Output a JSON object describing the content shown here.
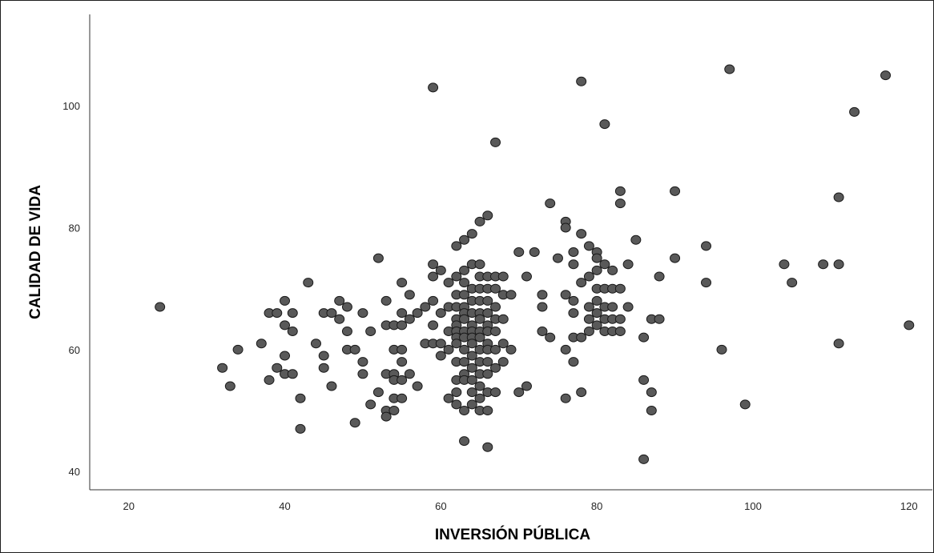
{
  "chart_data": {
    "type": "scatter",
    "title": "",
    "xlabel": "INVERSIÓN PÚBLICA",
    "ylabel": "CALIDAD DE VIDA",
    "xlim": [
      15,
      123
    ],
    "ylim": [
      37,
      115
    ],
    "xticks": [
      20,
      40,
      60,
      80,
      100,
      120
    ],
    "yticks": [
      40,
      60,
      80,
      100
    ],
    "grid": false,
    "legend": "none",
    "marker_color": "#595959",
    "marker_edge": "#1a1a1a",
    "series": [
      {
        "x": [
          24,
          32,
          33,
          34,
          37,
          38,
          38,
          39,
          39,
          40,
          40,
          40,
          40,
          41,
          41,
          41,
          42,
          42,
          43,
          44,
          45,
          45,
          45,
          46,
          46,
          47,
          47,
          48,
          48,
          48,
          49,
          49,
          50,
          50,
          50,
          51,
          51,
          52,
          52,
          53,
          53,
          53,
          53,
          53,
          54,
          54,
          54,
          54,
          54,
          54,
          55,
          55,
          55,
          55,
          55,
          55,
          55,
          56,
          56,
          56,
          57,
          57,
          58,
          58,
          59,
          59,
          59,
          59,
          59,
          59,
          60,
          60,
          60,
          60,
          61,
          61,
          61,
          61,
          61,
          62,
          62,
          62,
          62,
          62,
          62,
          62,
          62,
          62,
          62,
          62,
          62,
          62,
          63,
          63,
          63,
          63,
          63,
          63,
          63,
          63,
          63,
          63,
          63,
          63,
          63,
          63,
          63,
          64,
          64,
          64,
          64,
          64,
          64,
          64,
          64,
          64,
          64,
          64,
          64,
          64,
          64,
          65,
          65,
          65,
          65,
          65,
          65,
          65,
          65,
          65,
          65,
          65,
          65,
          65,
          65,
          65,
          66,
          66,
          66,
          66,
          66,
          66,
          66,
          66,
          66,
          66,
          66,
          66,
          66,
          66,
          67,
          67,
          67,
          67,
          67,
          67,
          67,
          67,
          67,
          68,
          68,
          68,
          68,
          68,
          69,
          69,
          70,
          70,
          71,
          71,
          72,
          73,
          73,
          73,
          74,
          74,
          75,
          76,
          76,
          76,
          76,
          76,
          77,
          77,
          77,
          77,
          77,
          77,
          78,
          78,
          78,
          78,
          78,
          79,
          79,
          79,
          79,
          79,
          80,
          80,
          80,
          80,
          80,
          80,
          80,
          81,
          81,
          81,
          81,
          81,
          81,
          82,
          82,
          82,
          82,
          82,
          83,
          83,
          83,
          83,
          83,
          84,
          84,
          85,
          86,
          86,
          86,
          87,
          87,
          87,
          88,
          88,
          90,
          90,
          94,
          94,
          96,
          97,
          99,
          104,
          105,
          109,
          111,
          111,
          111,
          113,
          117,
          120
        ],
        "y": [
          67,
          57,
          54,
          60,
          61,
          55,
          66,
          57,
          66,
          68,
          64,
          59,
          56,
          66,
          63,
          56,
          52,
          47,
          71,
          61,
          66,
          59,
          57,
          66,
          54,
          68,
          65,
          67,
          63,
          60,
          60,
          48,
          66,
          58,
          56,
          63,
          51,
          75,
          53,
          68,
          64,
          56,
          50,
          49,
          64,
          60,
          56,
          55,
          52,
          50,
          71,
          66,
          64,
          60,
          58,
          55,
          52,
          69,
          65,
          56,
          66,
          54,
          67,
          61,
          74,
          72,
          68,
          64,
          61,
          103,
          73,
          66,
          61,
          59,
          71,
          67,
          63,
          60,
          52,
          77,
          72,
          69,
          67,
          65,
          64,
          63,
          62,
          61,
          58,
          55,
          53,
          51,
          78,
          73,
          71,
          69,
          67,
          66,
          65,
          63,
          62,
          60,
          58,
          56,
          55,
          50,
          45,
          79,
          74,
          70,
          68,
          66,
          64,
          63,
          62,
          61,
          59,
          57,
          55,
          53,
          51,
          81,
          74,
          72,
          70,
          68,
          66,
          65,
          63,
          62,
          60,
          58,
          56,
          54,
          52,
          50,
          82,
          72,
          70,
          68,
          66,
          64,
          63,
          61,
          60,
          58,
          56,
          53,
          50,
          44,
          94,
          72,
          70,
          67,
          65,
          63,
          60,
          57,
          53,
          72,
          69,
          65,
          61,
          58,
          69,
          60,
          76,
          53,
          72,
          54,
          76,
          69,
          67,
          63,
          84,
          62,
          75,
          81,
          80,
          69,
          60,
          52,
          76,
          74,
          68,
          66,
          62,
          58,
          104,
          79,
          71,
          62,
          53,
          77,
          72,
          67,
          65,
          63,
          76,
          75,
          73,
          70,
          68,
          66,
          64,
          97,
          74,
          70,
          67,
          65,
          63,
          73,
          70,
          67,
          65,
          63,
          86,
          84,
          70,
          65,
          63,
          74,
          67,
          78,
          62,
          55,
          42,
          65,
          53,
          50,
          72,
          65,
          86,
          75,
          77,
          71,
          60,
          106,
          51,
          74,
          71,
          74,
          85,
          74,
          61,
          99,
          105,
          64
        ]
      }
    ]
  }
}
